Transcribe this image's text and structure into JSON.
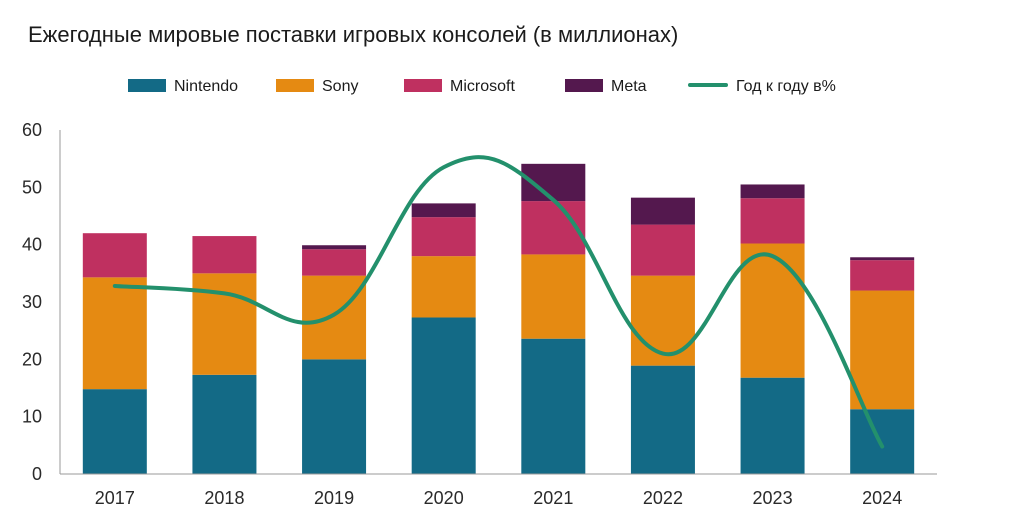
{
  "chart_data": {
    "type": "bar",
    "title": "Ежегодные мировые поставки игровых консолей (в миллионах)",
    "xlabel": "",
    "ylabel": "",
    "ylim": [
      0,
      60
    ],
    "yticks": [
      0,
      10,
      20,
      30,
      40,
      50,
      60
    ],
    "stacked": true,
    "grid": false,
    "legend_position": "top",
    "categories": [
      "2017",
      "2018",
      "2019",
      "2020",
      "2021",
      "2022",
      "2023",
      "2024"
    ],
    "series": [
      {
        "name": "Nintendo",
        "type": "bar",
        "color": "#136a86",
        "values": [
          14.8,
          17.3,
          20.0,
          27.3,
          23.6,
          18.9,
          16.8,
          11.3
        ]
      },
      {
        "name": "Sony",
        "type": "bar",
        "color": "#e58a12",
        "values": [
          19.5,
          17.7,
          14.6,
          10.7,
          14.7,
          15.7,
          23.4,
          20.7
        ]
      },
      {
        "name": "Microsoft",
        "type": "bar",
        "color": "#bf3060",
        "values": [
          7.7,
          6.5,
          4.6,
          6.8,
          9.3,
          8.9,
          7.9,
          5.3
        ]
      },
      {
        "name": "Meta",
        "type": "bar",
        "color": "#54184e",
        "values": [
          0,
          0,
          0.7,
          2.4,
          6.5,
          4.7,
          2.4,
          0.5
        ]
      },
      {
        "name": "Год к году в%",
        "type": "line",
        "color": "#23906c",
        "values": [
          32.8,
          31.5,
          27.8,
          53.5,
          47.8,
          21.0,
          38.0,
          4.8
        ]
      }
    ]
  }
}
